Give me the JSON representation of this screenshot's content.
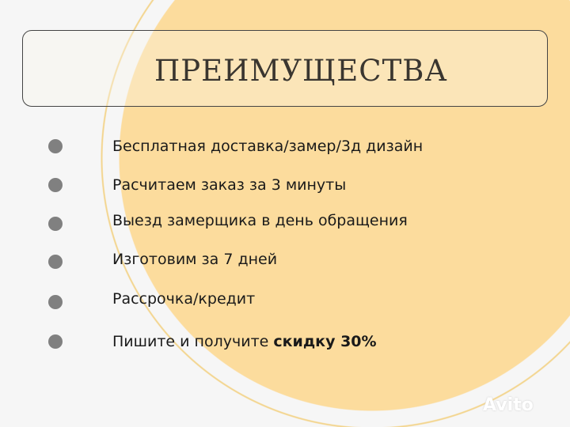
{
  "header": {
    "title": "ПРЕИМУЩЕСТВА"
  },
  "items": [
    {
      "label": "Бесплатная доставка/замер/3д дизайн"
    },
    {
      "label": "Расчитаем заказ за 3 минуты"
    },
    {
      "label": "Выезд замерщика в день обращения"
    },
    {
      "label": "Изготовим за 7 дней"
    },
    {
      "label": "Рассрочка/кредит"
    },
    {
      "label": "Пишите и получите ",
      "bold": "скидку 30%"
    }
  ],
  "watermark": {
    "text": "Avito"
  },
  "colors": {
    "accent": "#fcdc9d",
    "bullet": "#808080"
  }
}
